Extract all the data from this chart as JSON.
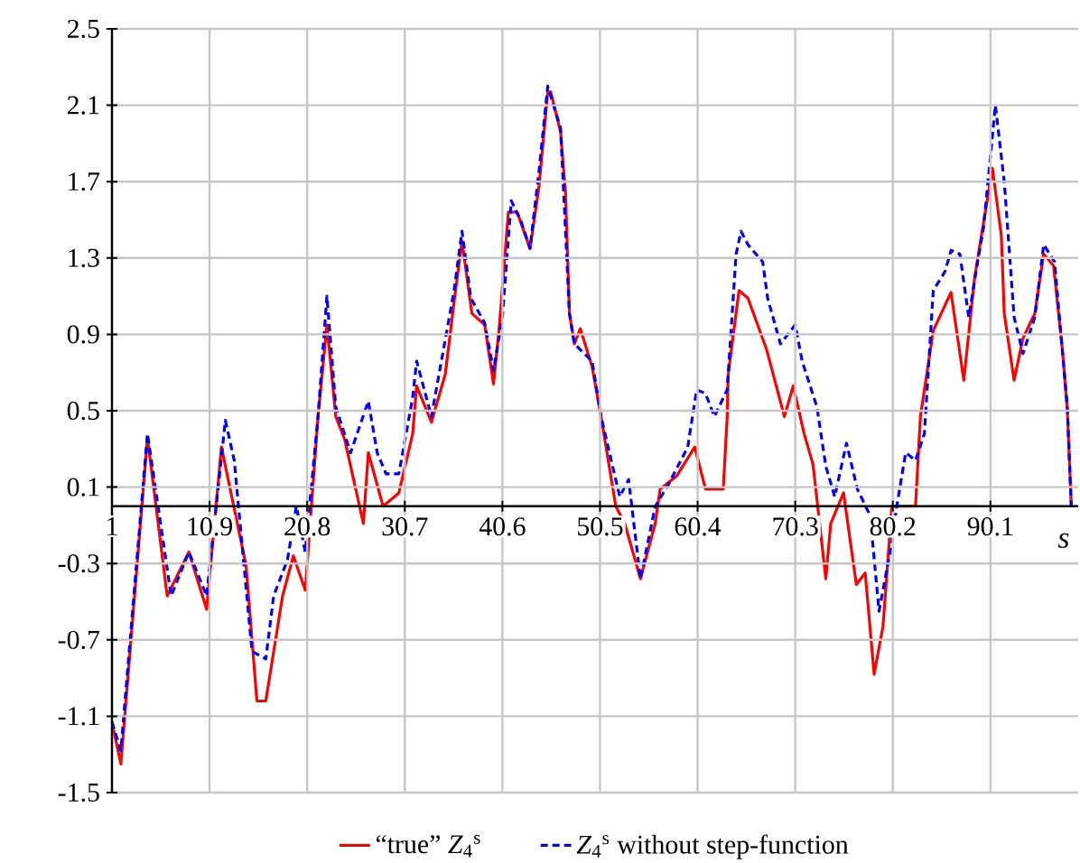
{
  "chart_data": {
    "type": "line",
    "xlabel": "s",
    "xlim": [
      1,
      99
    ],
    "xticks": [
      1,
      10.9,
      20.8,
      30.7,
      40.6,
      50.5,
      60.4,
      70.3,
      80.2,
      90.1
    ],
    "ylim": [
      -1.5,
      2.5
    ],
    "yticks": [
      -1.5,
      -1.1,
      -0.7,
      -0.3,
      0.1,
      0.5,
      0.9,
      1.3,
      1.7,
      2.1,
      2.5
    ],
    "grid": true,
    "legend": "bottom",
    "series": [
      {
        "name": "“true” *Z*$_{4}$$^{s}$",
        "color": "#ff0000",
        "line_style": "solid",
        "x": [
          1,
          1.9,
          4.6,
          6.6,
          8.8,
          10.6,
          12.1,
          14.6,
          15.7,
          16.6,
          18.3,
          19.4,
          20.6,
          21.9,
          22.8,
          23.7,
          24.6,
          26.5,
          27.0,
          28.5,
          30.1,
          31.5,
          31.9,
          33.4,
          34.8,
          35.7,
          36.5,
          37.5,
          38.8,
          39.7,
          40.3,
          41.2,
          42.1,
          43.4,
          44.3,
          45.2,
          45.5,
          46.5,
          47.0,
          47.4,
          47.9,
          48.5,
          49.7,
          50.6,
          52.1,
          53.0,
          54.6,
          56.1,
          56.6,
          58.3,
          60.1,
          61.2,
          63.0,
          63.4,
          63.5,
          64.6,
          65.5,
          67.4,
          69.2,
          70.1,
          71.2,
          72.1,
          73.4,
          73.9,
          75.2,
          76.5,
          77.4,
          78.3,
          79.2,
          80.1,
          82.5,
          83.0,
          84.3,
          86.1,
          87.4,
          88.5,
          90.3,
          91.2,
          91.5,
          92.5,
          93.4,
          94.6,
          95.5,
          96.5,
          97.4,
          97.9,
          98.3
        ],
        "values": [
          -1.13,
          -1.35,
          0.36,
          -0.47,
          -0.24,
          -0.54,
          0.31,
          -0.31,
          -1.02,
          -1.02,
          -0.47,
          -0.26,
          -0.44,
          0.47,
          0.95,
          0.47,
          0.35,
          -0.09,
          0.28,
          0,
          0.07,
          0.38,
          0.63,
          0.44,
          0.69,
          1.07,
          1.39,
          1.01,
          0.95,
          0.64,
          0.95,
          1.54,
          1.54,
          1.35,
          1.67,
          2.17,
          2.17,
          1.96,
          1.64,
          1.01,
          0.85,
          0.93,
          0.73,
          0.47,
          0,
          -0.09,
          -0.38,
          -0.09,
          0.09,
          0.16,
          0.31,
          0.09,
          0.09,
          0.47,
          0.69,
          1.13,
          1.09,
          0.82,
          0.47,
          0.63,
          0.38,
          0.22,
          -0.38,
          -0.09,
          0.07,
          -0.41,
          -0.35,
          -0.88,
          -0.63,
          0,
          0,
          0.47,
          0.92,
          1.12,
          0.66,
          1.2,
          1.77,
          1.42,
          1.01,
          0.66,
          0.88,
          1.01,
          1.32,
          1.26,
          0.82,
          0.5,
          0
        ]
      },
      {
        "name": "*Z*$_{4}$$^{s}$ without step-function",
        "color": "#0000ff",
        "line_style": "dashed",
        "x": [
          1,
          1.9,
          4.6,
          7.0,
          8.8,
          10.6,
          12.5,
          13.4,
          15.2,
          16.6,
          17.4,
          18.8,
          19.7,
          20.6,
          21.9,
          22.8,
          23.7,
          25.2,
          27.0,
          27.9,
          28.8,
          30.1,
          31.5,
          31.9,
          33.4,
          35.7,
          36.5,
          37.4,
          38.8,
          39.7,
          40.6,
          41.5,
          42.5,
          43.4,
          44.3,
          45.2,
          46.5,
          47.4,
          47.9,
          49.7,
          50.6,
          52.5,
          53.4,
          54.6,
          56.1,
          57.4,
          59.4,
          60.3,
          61.2,
          62.1,
          63.4,
          64.3,
          64.8,
          65.5,
          67.0,
          67.5,
          68.8,
          70.3,
          71.0,
          72.5,
          73.4,
          74.3,
          75.5,
          76.6,
          77.9,
          78.8,
          80.1,
          80.6,
          81.5,
          82.5,
          83.4,
          84.3,
          85.5,
          86.1,
          87.0,
          87.9,
          88.8,
          89.4,
          90.3,
          90.6,
          91.5,
          92.5,
          93.4,
          94.6,
          95.5,
          96.6,
          97.9,
          98.3
        ],
        "values": [
          -1.13,
          -1.28,
          0.38,
          -0.47,
          -0.24,
          -0.47,
          0.45,
          0.24,
          -0.76,
          -0.8,
          -0.47,
          -0.28,
          0,
          -0.24,
          0.47,
          1.1,
          0.52,
          0.28,
          0.55,
          0.28,
          0.17,
          0.17,
          0.57,
          0.76,
          0.47,
          1.13,
          1.44,
          1.09,
          0.96,
          0.71,
          0.99,
          1.6,
          1.49,
          1.35,
          1.75,
          2.2,
          1.98,
          1.01,
          0.85,
          0.76,
          0.47,
          0.05,
          0.14,
          -0.38,
          0,
          0.11,
          0.31,
          0.61,
          0.59,
          0.47,
          0.61,
          1.32,
          1.44,
          1.37,
          1.28,
          1.09,
          0.85,
          0.95,
          0.76,
          0.52,
          0.21,
          0.05,
          0.33,
          0.09,
          -0.05,
          -0.55,
          -0.19,
          0,
          0.28,
          0.24,
          0.38,
          1.13,
          1.23,
          1.34,
          1.32,
          0.99,
          1.28,
          1.46,
          1.94,
          2.1,
          1.7,
          0.99,
          0.8,
          0.99,
          1.37,
          1.28,
          0.52,
          0
        ]
      }
    ]
  }
}
